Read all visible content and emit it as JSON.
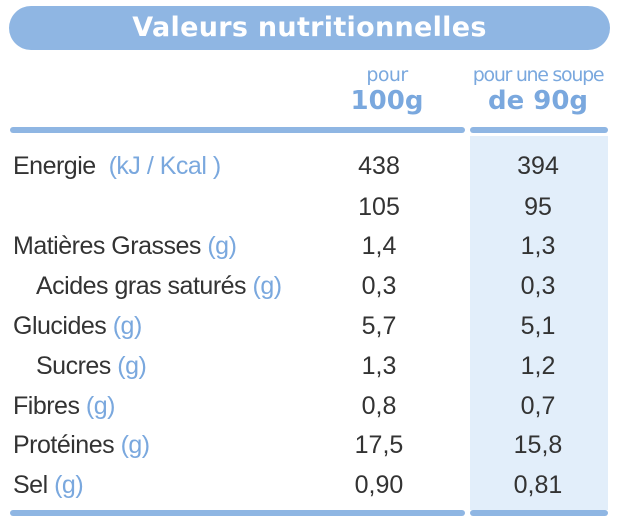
{
  "title": "Valeurs nutritionnelles",
  "columns": [
    {
      "line1": "pour",
      "line2": "100g"
    },
    {
      "line1": "pour une soupe",
      "line2": "de 90g"
    }
  ],
  "rows": [
    {
      "label": "Energie",
      "unit": "(kJ / Kcal )",
      "per100": "438",
      "perServing": "394"
    },
    {
      "label": "",
      "unit": "",
      "per100": "105",
      "perServing": "95"
    },
    {
      "label": "Matières Grasses",
      "unit": "(g)",
      "per100": "1,4",
      "perServing": "1,3"
    },
    {
      "label": "Acides gras saturés",
      "unit": "(g)",
      "per100": "0,3",
      "perServing": "0,3"
    },
    {
      "label": "Glucides",
      "unit": "(g)",
      "per100": "5,7",
      "perServing": "5,1"
    },
    {
      "label": "Sucres",
      "unit": "(g)",
      "per100": "1,3",
      "perServing": "1,2"
    },
    {
      "label": "Fibres",
      "unit": "(g)",
      "per100": "0,8",
      "perServing": "0,7"
    },
    {
      "label": "Protéines",
      "unit": "(g)",
      "per100": "17,5",
      "perServing": "15,8"
    },
    {
      "label": "Sel",
      "unit": "(g)",
      "per100": "0,90",
      "perServing": "0,81"
    }
  ],
  "colors": {
    "accent": "#8fb6e3",
    "unit_text": "#7aa8de",
    "serving_column_bg": "#e2eefa",
    "body_text": "#333333"
  }
}
